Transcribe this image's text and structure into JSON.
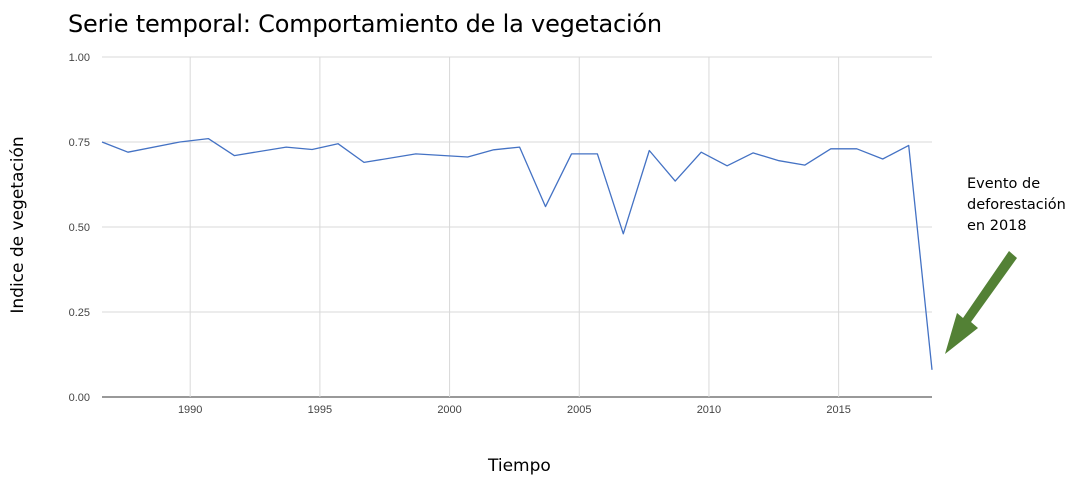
{
  "title": "Serie temporal: Comportamiento de la vegetación",
  "annotation": {
    "lines": [
      "Evento de",
      "deforestación",
      "en 2018"
    ],
    "arrow_color": "#538135"
  },
  "colors": {
    "line": "#4472c4",
    "grid": "#d9d9d9",
    "tick_text": "#444444"
  },
  "chart_data": {
    "type": "line",
    "title": "Serie temporal: Comportamiento de la vegetación",
    "xlabel": "Tiempo",
    "ylabel": "Indice de vegetación",
    "xlim": [
      1986.6,
      2018.6
    ],
    "ylim": [
      0,
      1
    ],
    "x_ticks": [
      1990,
      1995,
      2000,
      2005,
      2010,
      2015
    ],
    "x_tick_labels": [
      "1990",
      "1995",
      "2000",
      "2005",
      "2010",
      "2015"
    ],
    "y_ticks": [
      0,
      0.25,
      0.5,
      0.75,
      1.0
    ],
    "y_tick_labels": [
      "0.00",
      "0.25",
      "0.50",
      "0.75",
      "1.00"
    ],
    "grid": true,
    "series": [
      {
        "x": [
          1986.6,
          1987.6,
          1989.6,
          1990.7,
          1991.7,
          1993.7,
          1994.7,
          1995.7,
          1996.7,
          1998.7,
          2000.7,
          2001.7,
          2002.7,
          2003.7,
          2004.7,
          2005.7,
          2006.7,
          2007.7,
          2008.7,
          2009.7,
          2010.7,
          2011.7,
          2012.7,
          2013.7,
          2014.7,
          2015.7,
          2016.7,
          2017.7,
          2018.6
        ],
        "values": [
          0.75,
          0.72,
          0.75,
          0.76,
          0.71,
          0.735,
          0.728,
          0.745,
          0.69,
          0.715,
          0.706,
          0.727,
          0.735,
          0.56,
          0.715,
          0.715,
          0.48,
          0.725,
          0.635,
          0.72,
          0.68,
          0.718,
          0.695,
          0.682,
          0.73,
          0.73,
          0.7,
          0.74,
          0.08
        ]
      }
    ]
  }
}
